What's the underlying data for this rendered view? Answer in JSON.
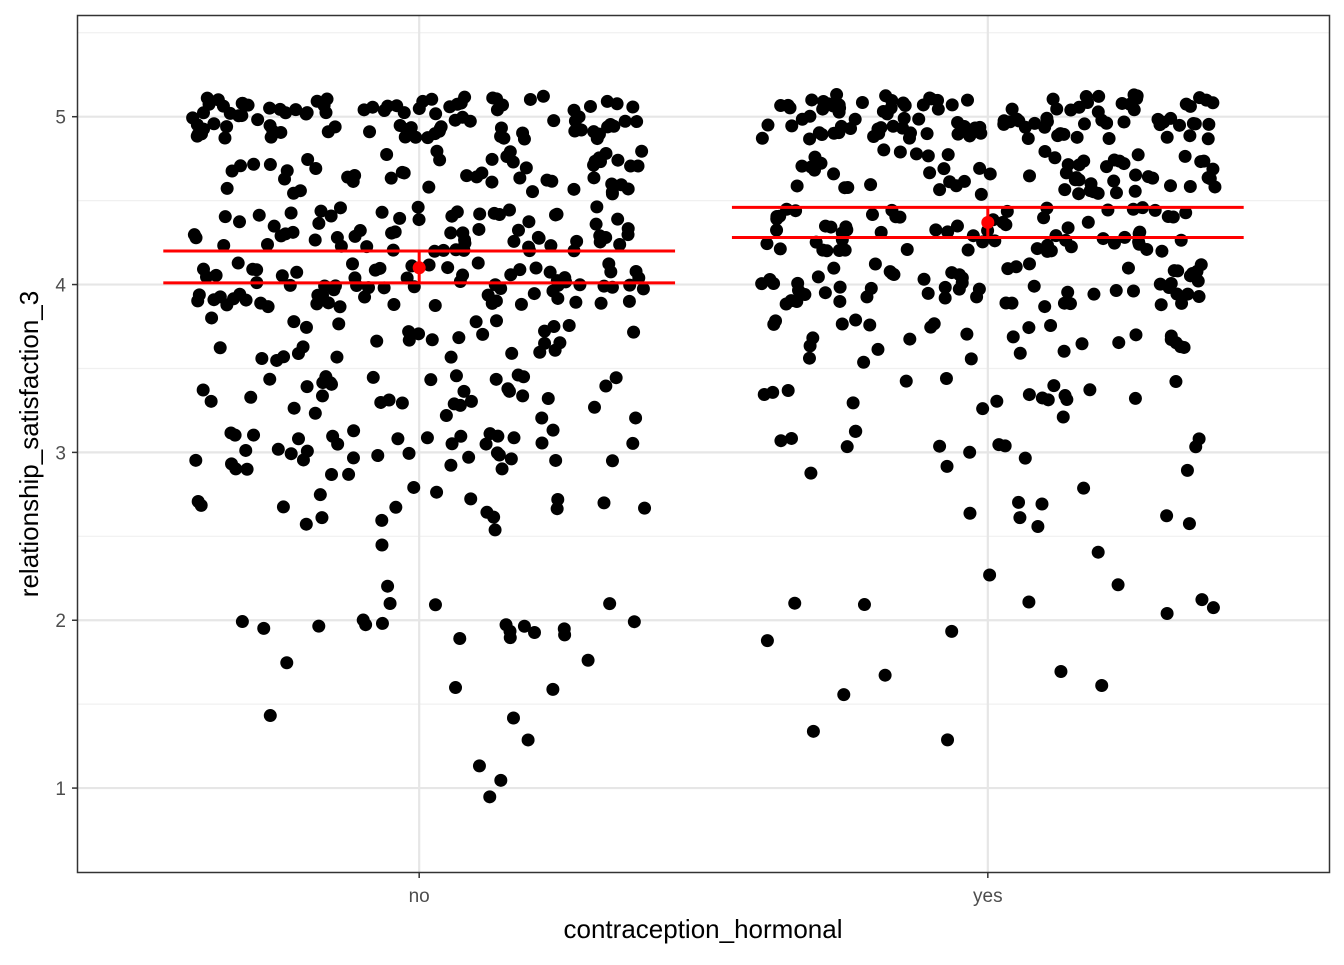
{
  "chart_data": {
    "type": "scatter",
    "title": "",
    "xlabel": "contraception_hormonal",
    "ylabel": "relationship_satisfaction_3",
    "categories": [
      "no",
      "yes"
    ],
    "ylim": [
      0.5,
      5.6
    ],
    "yticks": [
      1,
      2,
      3,
      4,
      5
    ],
    "grid": true,
    "legend": "none",
    "jitter_width": 0.4,
    "point_color": "#000000",
    "summary_color": "#ff0000",
    "summary": [
      {
        "category": "no",
        "mean": 4.1,
        "ci_low": 4.01,
        "ci_high": 4.2
      },
      {
        "category": "yes",
        "mean": 4.37,
        "ci_low": 4.28,
        "ci_high": 4.46
      }
    ],
    "series": [
      {
        "category": "no",
        "values": [
          {
            "y": 1,
            "count": 3
          },
          {
            "y": 1.33,
            "count": 3
          },
          {
            "y": 1.67,
            "count": 4
          },
          {
            "y": 2,
            "count": 18
          },
          {
            "y": 2.33,
            "count": 2
          },
          {
            "y": 2.67,
            "count": 18
          },
          {
            "y": 3,
            "count": 40
          },
          {
            "y": 3.33,
            "count": 35
          },
          {
            "y": 3.67,
            "count": 30
          },
          {
            "y": 4,
            "count": 75
          },
          {
            "y": 4.33,
            "count": 65
          },
          {
            "y": 4.67,
            "count": 50
          },
          {
            "y": 5,
            "count": 95
          }
        ]
      },
      {
        "category": "yes",
        "values": [
          {
            "y": 1.33,
            "count": 2
          },
          {
            "y": 1.67,
            "count": 4
          },
          {
            "y": 2,
            "count": 8
          },
          {
            "y": 2.33,
            "count": 3
          },
          {
            "y": 2.67,
            "count": 8
          },
          {
            "y": 3,
            "count": 15
          },
          {
            "y": 3.33,
            "count": 18
          },
          {
            "y": 3.67,
            "count": 28
          },
          {
            "y": 4,
            "count": 60
          },
          {
            "y": 4.33,
            "count": 65
          },
          {
            "y": 4.67,
            "count": 60
          },
          {
            "y": 5,
            "count": 110
          }
        ]
      }
    ]
  }
}
